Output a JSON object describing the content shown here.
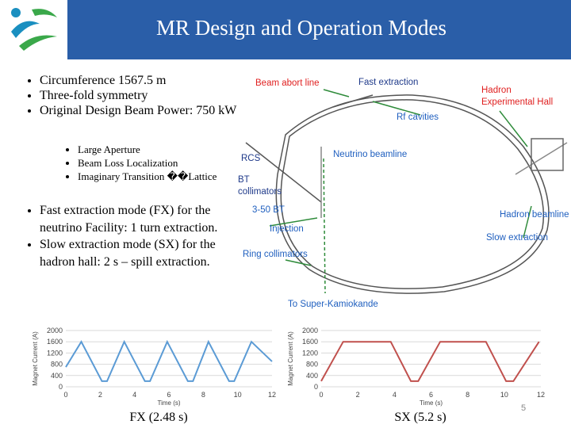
{
  "header": {
    "title": "MR Design and Operation Modes"
  },
  "bullets_top": [
    "Circumference 1567.5 m",
    "Three-fold symmetry",
    "Original Design Beam Power: 750 kW"
  ],
  "sub_bullets": [
    "Large Aperture",
    "Beam Loss Localization",
    "Imaginary Transition ��Lattice"
  ],
  "bullets_bottom": [
    "Fast extraction mode (FX) for the neutrino Facility: 1 turn extraction.",
    "Slow extraction mode (SX) for the hadron hall: 2 s – spill extraction."
  ],
  "diagram": {
    "labels": [
      {
        "lines": [
          "Beam abort line"
        ],
        "color": "#e02020"
      },
      {
        "lines": [
          "Fast extraction"
        ],
        "color": "#1f3a8a"
      },
      {
        "lines": [
          "Hadron",
          "Experimental Hall"
        ],
        "color": "#e02020"
      },
      {
        "lines": [
          "Rf cavities"
        ],
        "color": "#1f5fbf"
      },
      {
        "lines": [
          "RCS"
        ],
        "color": "#1f3a8a"
      },
      {
        "lines": [
          "Neutrino beamline"
        ],
        "color": "#1f5fbf"
      },
      {
        "lines": [
          "BT",
          "collimators"
        ],
        "color": "#1f3a8a"
      },
      {
        "lines": [
          "3-50 BT"
        ],
        "color": "#1f5fbf"
      },
      {
        "lines": [
          "Hadron beamline"
        ],
        "color": "#1f5fbf"
      },
      {
        "lines": [
          "Injection"
        ],
        "color": "#1f5fbf"
      },
      {
        "lines": [
          "Slow extraction"
        ],
        "color": "#1f5fbf"
      },
      {
        "lines": [
          "Ring collimators"
        ],
        "color": "#1f5fbf"
      },
      {
        "lines": [
          "To Super-Kamiokande"
        ],
        "color": "#1f5fbf"
      }
    ]
  },
  "chart_data": [
    {
      "type": "line",
      "caption": "FX (2.48 s)",
      "x_label": "Time (s)",
      "y_label": "Magnet Current (A)",
      "color": "#5b9bd5",
      "x": [
        0,
        0.9,
        2.1,
        2.4,
        3.4,
        4.6,
        4.9,
        5.9,
        7.1,
        7.4,
        8.3,
        9.5,
        9.8,
        10.8,
        12
      ],
      "values": [
        700,
        1600,
        200,
        200,
        1600,
        200,
        200,
        1600,
        200,
        200,
        1600,
        200,
        200,
        1600,
        900
      ],
      "xlim": [
        0,
        12
      ],
      "xticks": [
        0,
        2,
        4,
        6,
        8,
        10,
        12
      ],
      "ylim": [
        0,
        2000
      ],
      "yticks": [
        0,
        400,
        800,
        1200,
        1600,
        2000
      ],
      "grid": true
    },
    {
      "type": "line",
      "caption": "SX (5.2 s)",
      "x_label": "Time (s)",
      "y_label": "Magnet Current (A)",
      "color": "#c0504d",
      "x": [
        0,
        1.2,
        3.8,
        4.9,
        5.3,
        6.5,
        9.0,
        10.1,
        10.5,
        11.9
      ],
      "values": [
        200,
        1600,
        1600,
        200,
        200,
        1600,
        1600,
        200,
        200,
        1600
      ],
      "xlim": [
        0,
        12
      ],
      "xticks": [
        0,
        2,
        4,
        6,
        8,
        10,
        12
      ],
      "ylim": [
        0,
        2000
      ],
      "yticks": [
        0,
        400,
        800,
        1200,
        1600,
        2000
      ],
      "grid": true
    }
  ],
  "page_number": "5"
}
